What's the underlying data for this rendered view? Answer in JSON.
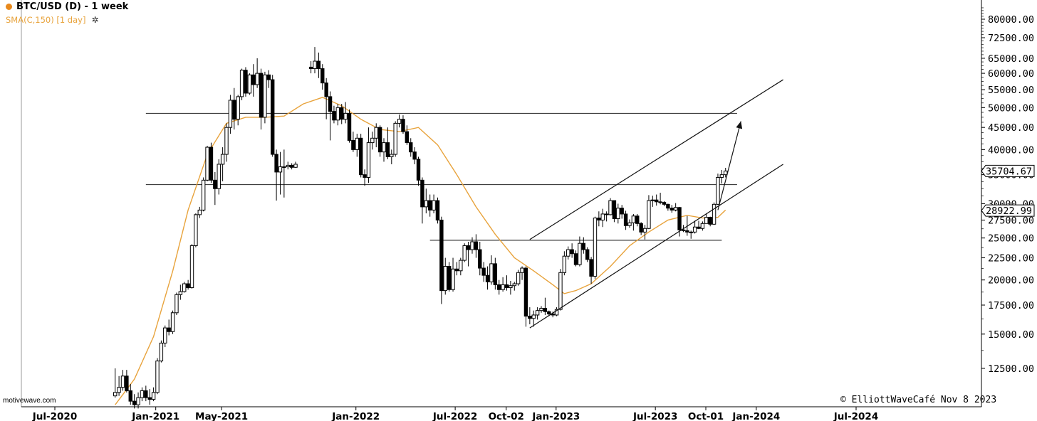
{
  "header": {
    "title": "BTC/USD (D) - 1 week",
    "indicator": "SMA(C,150) [1 day]",
    "accent": "#e8891c"
  },
  "watermark": "motivewave.com",
  "copyright": "© ElliottWaveCafé Nov 8 2023",
  "colors": {
    "sma": "#e8a33c",
    "candle": "#000000",
    "background": "#ffffff"
  },
  "chart_data": {
    "type": "candlestick",
    "title": "BTC/USD (D) - 1 week",
    "scale": "log",
    "ylim": [
      10000,
      90000
    ],
    "x_tick_labels": [
      "Jul-2020",
      "Jan-2021",
      "May-2021",
      "Jan-2022",
      "Jul-2022",
      "Oct-02",
      "Jan-2023",
      "Jul-2023",
      "Oct-01",
      "Jan-2024",
      "Jul-2024"
    ],
    "y_tick_labels": [
      "80000.00",
      "72500.00",
      "65000.00",
      "60000.00",
      "55000.00",
      "50000.00",
      "45000.00",
      "40000.00",
      "35000.00",
      "30000.00",
      "27500.00",
      "25000.00",
      "22500.00",
      "20000.00",
      "17500.00",
      "15000.00",
      "12500.00"
    ],
    "y_ticks": [
      80000,
      72500,
      65000,
      60000,
      55000,
      50000,
      45000,
      40000,
      35000,
      30000,
      27500,
      25000,
      22500,
      20000,
      17500,
      15000,
      12500
    ],
    "price_labels": [
      {
        "text": "35704.67",
        "value": 35704.67
      },
      {
        "text": "28922.99",
        "value": 28922.99
      }
    ],
    "horizontal_levels": [
      {
        "value": 48500,
        "from": "2020-12-14",
        "to": "2023-11-27"
      },
      {
        "value": 33200,
        "from": "2020-12-14",
        "to": "2023-11-27"
      },
      {
        "value": 24700,
        "from": "2022-05-16",
        "to": "2023-10-30"
      }
    ],
    "channel_lines": [
      {
        "from_date": "2022-11-14",
        "from_value": 15500,
        "to_date": "2024-02-19",
        "to_value": 37000
      },
      {
        "from_date": "2022-11-14",
        "from_value": 24800,
        "to_date": "2024-02-19",
        "to_value": 58000
      }
    ],
    "arrow": {
      "from_date": "2023-10-23",
      "from_value": 29000,
      "to_date": "2023-12-04",
      "to_value": 46500
    },
    "sma_series": {
      "name": "SMA(C,150) [1 day]",
      "points": [
        [
          "2020-10-19",
          10300
        ],
        [
          "2020-11-23",
          11800
        ],
        [
          "2020-12-28",
          14800
        ],
        [
          "2021-02-01",
          21000
        ],
        [
          "2021-03-01",
          29000
        ],
        [
          "2021-04-05",
          39000
        ],
        [
          "2021-05-10",
          46000
        ],
        [
          "2021-06-14",
          47500
        ],
        [
          "2021-07-19",
          47500
        ],
        [
          "2021-08-23",
          47800
        ],
        [
          "2021-09-27",
          51000
        ],
        [
          "2021-11-01",
          52800
        ],
        [
          "2021-12-06",
          50500
        ],
        [
          "2022-01-10",
          47000
        ],
        [
          "2022-02-14",
          44500
        ],
        [
          "2022-03-21",
          44000
        ],
        [
          "2022-04-25",
          45000
        ],
        [
          "2022-05-30",
          41000
        ],
        [
          "2022-07-04",
          35000
        ],
        [
          "2022-08-08",
          29500
        ],
        [
          "2022-09-12",
          25500
        ],
        [
          "2022-10-17",
          22500
        ],
        [
          "2022-11-21",
          21000
        ],
        [
          "2022-12-26",
          19500
        ],
        [
          "2023-01-16",
          18600
        ],
        [
          "2023-02-06",
          18900
        ],
        [
          "2023-03-06",
          19600
        ],
        [
          "2023-04-10",
          21500
        ],
        [
          "2023-05-15",
          24000
        ],
        [
          "2023-06-19",
          25800
        ],
        [
          "2023-07-24",
          27500
        ],
        [
          "2023-08-28",
          28200
        ],
        [
          "2023-09-25",
          27800
        ],
        [
          "2023-10-23",
          27900
        ],
        [
          "2023-11-06",
          29000
        ]
      ]
    },
    "candles": [
      [
        "2020-10-19",
        10800,
        12500,
        10700,
        11000
      ],
      [
        "2020-10-26",
        11000,
        12000,
        10800,
        11300
      ],
      [
        "2020-11-02",
        11300,
        12400,
        11100,
        12000
      ],
      [
        "2020-11-09",
        12000,
        12400,
        11000,
        11100
      ],
      [
        "2020-11-16",
        11100,
        11500,
        10300,
        10500
      ],
      [
        "2020-11-23",
        10500,
        10900,
        10100,
        10300
      ],
      [
        "2020-11-30",
        10300,
        11000,
        10100,
        10700
      ],
      [
        "2020-12-07",
        10700,
        11300,
        10500,
        11100
      ],
      [
        "2020-12-14",
        11100,
        11400,
        10500,
        10700
      ],
      [
        "2020-12-21",
        10700,
        11200,
        10300,
        10600
      ],
      [
        "2020-12-28",
        10600,
        11300,
        10500,
        11000
      ],
      [
        "2021-01-04",
        11000,
        13200,
        10900,
        13000
      ],
      [
        "2021-01-11",
        13000,
        14500,
        12900,
        14300
      ],
      [
        "2021-01-18",
        14300,
        15700,
        14000,
        15500
      ],
      [
        "2021-01-25",
        15500,
        16200,
        14900,
        15200
      ],
      [
        "2021-02-01",
        15200,
        17000,
        15000,
        16800
      ],
      [
        "2021-02-08",
        16800,
        18700,
        16600,
        18500
      ],
      [
        "2021-02-15",
        18500,
        19500,
        18000,
        18800
      ],
      [
        "2021-02-22",
        18800,
        19800,
        18700,
        19600
      ],
      [
        "2021-03-01",
        19600,
        20000,
        19000,
        19200
      ],
      [
        "2021-03-08",
        19200,
        24200,
        19100,
        24000
      ],
      [
        "2021-03-15",
        24000,
        28500,
        23800,
        28300
      ],
      [
        "2021-03-22",
        28300,
        29500,
        27800,
        29000
      ],
      [
        "2021-03-29",
        29000,
        34500,
        28800,
        34000
      ],
      [
        "2021-04-05",
        34000,
        40800,
        33800,
        40500
      ],
      [
        "2021-04-12",
        40500,
        41500,
        33500,
        34000
      ],
      [
        "2021-04-19",
        34000,
        35500,
        29800,
        32500
      ],
      [
        "2021-04-26",
        32500,
        38000,
        31500,
        37000
      ],
      [
        "2021-05-03",
        37000,
        40500,
        33800,
        39000
      ],
      [
        "2021-05-10",
        39000,
        46000,
        37500,
        45000
      ],
      [
        "2021-05-17",
        45000,
        53500,
        43500,
        52000
      ],
      [
        "2021-05-24",
        52000,
        55500,
        44500,
        47000
      ],
      [
        "2021-05-31",
        47000,
        53500,
        45500,
        53000
      ],
      [
        "2021-06-07",
        53000,
        61500,
        52000,
        61000
      ],
      [
        "2021-06-14",
        61000,
        62000,
        53000,
        54000
      ],
      [
        "2021-06-21",
        54000,
        60000,
        53500,
        59500
      ],
      [
        "2021-06-28",
        59500,
        63000,
        53000,
        56500
      ],
      [
        "2021-07-05",
        56500,
        65000,
        55500,
        60000
      ],
      [
        "2021-07-12",
        60000,
        61500,
        44500,
        47500
      ],
      [
        "2021-07-19",
        47500,
        60500,
        46000,
        59500
      ],
      [
        "2021-07-26",
        59500,
        61000,
        55500,
        58000
      ],
      [
        "2021-08-02",
        58000,
        59500,
        38500,
        39000
      ],
      [
        "2021-08-09",
        39000,
        40000,
        30500,
        35500
      ],
      [
        "2021-08-16",
        35500,
        39500,
        31500,
        36500
      ],
      [
        "2021-08-23",
        36500,
        40000,
        31000,
        36500
      ],
      [
        "2021-08-30",
        36500,
        37500,
        36000,
        36800
      ],
      [
        "2021-09-06",
        36800,
        37200,
        36000,
        36400
      ],
      [
        "2021-09-13",
        36400,
        37500,
        36300,
        37000
      ],
      [
        "2021-10-11",
        62000,
        64000,
        60000,
        61500
      ],
      [
        "2021-10-18",
        61500,
        69000,
        60000,
        64000
      ],
      [
        "2021-10-25",
        64000,
        67000,
        58500,
        61500
      ],
      [
        "2021-11-01",
        61500,
        63000,
        55000,
        57000
      ],
      [
        "2021-11-08",
        57000,
        58500,
        47000,
        53000
      ],
      [
        "2021-11-15",
        53000,
        54500,
        42000,
        49000
      ],
      [
        "2021-11-22",
        49000,
        50500,
        46000,
        46800
      ],
      [
        "2021-11-29",
        46800,
        51000,
        45500,
        50000
      ],
      [
        "2021-12-06",
        50000,
        51000,
        45800,
        47000
      ],
      [
        "2021-12-13",
        47000,
        51500,
        46000,
        48500
      ],
      [
        "2021-12-20",
        48500,
        49500,
        41500,
        42000
      ],
      [
        "2021-12-27",
        42000,
        44000,
        39500,
        40000
      ],
      [
        "2022-01-03",
        40000,
        43500,
        38500,
        42500
      ],
      [
        "2022-01-10",
        42500,
        43500,
        34500,
        35000
      ],
      [
        "2022-01-17",
        35000,
        36000,
        33000,
        34500
      ],
      [
        "2022-01-24",
        34500,
        45000,
        33500,
        41500
      ],
      [
        "2022-01-31",
        41500,
        44000,
        40000,
        42500
      ],
      [
        "2022-02-07",
        42500,
        46000,
        40500,
        45000
      ],
      [
        "2022-02-14",
        45000,
        45500,
        38500,
        39500
      ],
      [
        "2022-02-21",
        39500,
        42500,
        37500,
        41500
      ],
      [
        "2022-02-28",
        41500,
        45000,
        38000,
        38500
      ],
      [
        "2022-03-07",
        38500,
        40000,
        37000,
        39000
      ],
      [
        "2022-03-14",
        39000,
        46500,
        38500,
        46000
      ],
      [
        "2022-03-21",
        46000,
        48200,
        45000,
        47000
      ],
      [
        "2022-03-28",
        47000,
        48000,
        43500,
        44000
      ],
      [
        "2022-04-04",
        44000,
        45500,
        41000,
        41500
      ],
      [
        "2022-04-11",
        41500,
        42500,
        38500,
        39500
      ],
      [
        "2022-04-18",
        39500,
        40500,
        37000,
        38000
      ],
      [
        "2022-04-25",
        38000,
        38500,
        33000,
        34000
      ],
      [
        "2022-05-02",
        34000,
        34500,
        27000,
        29500
      ],
      [
        "2022-05-09",
        29500,
        32500,
        28500,
        30500
      ],
      [
        "2022-05-16",
        30500,
        31500,
        28000,
        29000
      ],
      [
        "2022-05-23",
        29000,
        31500,
        28500,
        30500
      ],
      [
        "2022-05-30",
        30500,
        31000,
        27000,
        27500
      ],
      [
        "2022-06-06",
        27500,
        28000,
        17600,
        18900
      ],
      [
        "2022-06-13",
        18900,
        22500,
        18500,
        21500
      ],
      [
        "2022-06-20",
        21500,
        22000,
        18800,
        19000
      ],
      [
        "2022-06-27",
        19000,
        22500,
        18800,
        21200
      ],
      [
        "2022-07-04",
        21200,
        22000,
        20500,
        21000
      ],
      [
        "2022-07-11",
        21000,
        22500,
        20500,
        22200
      ],
      [
        "2022-07-18",
        22200,
        24300,
        22000,
        24000
      ],
      [
        "2022-07-25",
        24000,
        24500,
        21500,
        23500
      ],
      [
        "2022-08-01",
        23500,
        25100,
        23000,
        24500
      ],
      [
        "2022-08-08",
        24500,
        25500,
        22500,
        23500
      ],
      [
        "2022-08-15",
        23500,
        24500,
        20500,
        21300
      ],
      [
        "2022-08-22",
        21300,
        22000,
        19800,
        20500
      ],
      [
        "2022-08-29",
        20500,
        21500,
        19000,
        19800
      ],
      [
        "2022-09-05",
        19800,
        22800,
        19500,
        21800
      ],
      [
        "2022-09-12",
        21800,
        22500,
        19000,
        19500
      ],
      [
        "2022-09-19",
        19500,
        20000,
        18500,
        19000
      ],
      [
        "2022-09-26",
        19000,
        20300,
        18800,
        19500
      ],
      [
        "2022-10-03",
        19500,
        20500,
        18900,
        19200
      ],
      [
        "2022-10-10",
        19200,
        19900,
        18500,
        19400
      ],
      [
        "2022-10-17",
        19400,
        19800,
        18900,
        19600
      ],
      [
        "2022-10-24",
        19600,
        21100,
        19400,
        20800
      ],
      [
        "2022-10-31",
        20800,
        21500,
        20000,
        21300
      ],
      [
        "2022-11-07",
        21300,
        21500,
        15600,
        16500
      ],
      [
        "2022-11-14",
        16500,
        17300,
        15800,
        16300
      ],
      [
        "2022-11-21",
        16300,
        17000,
        15600,
        16600
      ],
      [
        "2022-11-28",
        16600,
        17300,
        16200,
        17000
      ],
      [
        "2022-12-05",
        17000,
        17400,
        16800,
        17200
      ],
      [
        "2022-12-12",
        17200,
        18200,
        16600,
        16900
      ],
      [
        "2022-12-19",
        16900,
        17000,
        16500,
        16700
      ],
      [
        "2022-12-26",
        16700,
        16900,
        16400,
        16600
      ],
      [
        "2023-01-02",
        16600,
        17300,
        16500,
        17100
      ],
      [
        "2023-01-09",
        17100,
        21200,
        17000,
        20800
      ],
      [
        "2023-01-16",
        20800,
        23300,
        20500,
        22700
      ],
      [
        "2023-01-23",
        22700,
        23900,
        22300,
        23500
      ],
      [
        "2023-01-30",
        23500,
        24300,
        22500,
        23000
      ],
      [
        "2023-02-06",
        23000,
        23400,
        21500,
        21700
      ],
      [
        "2023-02-13",
        21700,
        25200,
        21500,
        24300
      ],
      [
        "2023-02-20",
        24300,
        25100,
        23000,
        23500
      ],
      [
        "2023-02-27",
        23500,
        23800,
        22000,
        22300
      ],
      [
        "2023-03-06",
        22300,
        22600,
        19600,
        20400
      ],
      [
        "2023-03-13",
        20400,
        28000,
        20100,
        27800
      ],
      [
        "2023-03-20",
        27800,
        28800,
        26600,
        27500
      ],
      [
        "2023-03-27",
        27500,
        29200,
        26500,
        28400
      ],
      [
        "2023-04-03",
        28400,
        28800,
        27300,
        28300
      ],
      [
        "2023-04-10",
        28300,
        30900,
        28200,
        30500
      ],
      [
        "2023-04-17",
        30500,
        30500,
        27200,
        27700
      ],
      [
        "2023-04-24",
        27700,
        30000,
        27000,
        29300
      ],
      [
        "2023-05-01",
        29300,
        29800,
        27700,
        28400
      ],
      [
        "2023-05-08",
        28400,
        28900,
        26100,
        26700
      ],
      [
        "2023-05-15",
        26700,
        27600,
        26400,
        27100
      ],
      [
        "2023-05-22",
        27100,
        28400,
        26000,
        28100
      ],
      [
        "2023-05-29",
        28100,
        28400,
        26600,
        27000
      ],
      [
        "2023-06-05",
        27000,
        27200,
        25400,
        25800
      ],
      [
        "2023-06-12",
        25800,
        26800,
        24800,
        26300
      ],
      [
        "2023-06-19",
        26300,
        31400,
        26200,
        30500
      ],
      [
        "2023-06-26",
        30500,
        31300,
        29500,
        30600
      ],
      [
        "2023-07-03",
        30600,
        31500,
        29700,
        30300
      ],
      [
        "2023-07-10",
        30300,
        31800,
        29900,
        30200
      ],
      [
        "2023-07-17",
        30200,
        30400,
        29600,
        29900
      ],
      [
        "2023-07-24",
        29900,
        30000,
        28900,
        29300
      ],
      [
        "2023-07-31",
        29300,
        29800,
        28600,
        29000
      ],
      [
        "2023-08-07",
        29000,
        30100,
        28800,
        29400
      ],
      [
        "2023-08-14",
        29400,
        29500,
        25200,
        26100
      ],
      [
        "2023-08-21",
        26100,
        26800,
        25800,
        26000
      ],
      [
        "2023-08-28",
        26000,
        28100,
        25300,
        25800
      ],
      [
        "2023-09-04",
        25800,
        26000,
        24900,
        25800
      ],
      [
        "2023-09-11",
        25800,
        27400,
        25600,
        26500
      ],
      [
        "2023-09-18",
        26500,
        27400,
        26200,
        26300
      ],
      [
        "2023-09-25",
        26300,
        27300,
        26000,
        27000
      ],
      [
        "2023-10-02",
        27000,
        28500,
        27000,
        27900
      ],
      [
        "2023-10-09",
        27900,
        28000,
        26600,
        26900
      ],
      [
        "2023-10-16",
        26900,
        30200,
        26800,
        29900
      ],
      [
        "2023-10-23",
        29900,
        35200,
        29800,
        34500
      ],
      [
        "2023-10-30",
        34500,
        35900,
        33400,
        35000
      ],
      [
        "2023-11-06",
        35000,
        36300,
        34500,
        35700
      ]
    ]
  }
}
